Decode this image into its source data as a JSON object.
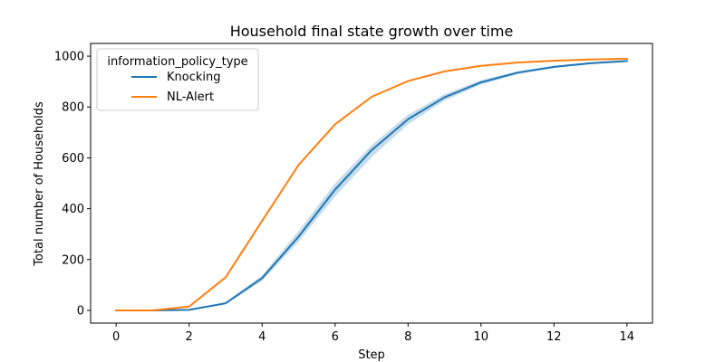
{
  "chart_data": {
    "type": "line",
    "title": "Household final state growth over time",
    "xlabel": "Step",
    "ylabel": "Total number of Households",
    "xlim": [
      -0.7,
      14.7
    ],
    "ylim": [
      -50,
      1050
    ],
    "xticks": [
      0,
      2,
      4,
      6,
      8,
      10,
      12,
      14
    ],
    "yticks": [
      0,
      200,
      400,
      600,
      800,
      1000
    ],
    "grid": false,
    "legend": {
      "title": "information_policy_type",
      "placement": "top-left"
    },
    "x": [
      0,
      1,
      2,
      3,
      4,
      5,
      6,
      7,
      8,
      9,
      10,
      11,
      12,
      13,
      14
    ],
    "series": [
      {
        "name": "Knocking",
        "color": "#1f77b4",
        "values": [
          0,
          0,
          2,
          28,
          127,
          290,
          475,
          630,
          752,
          838,
          897,
          935,
          958,
          972,
          981
        ],
        "ci_lower": [
          0,
          0,
          1,
          24,
          116,
          270,
          448,
          602,
          732,
          825,
          888,
          929,
          953,
          968,
          978
        ],
        "ci_upper": [
          0,
          0,
          3,
          32,
          138,
          312,
          500,
          650,
          770,
          850,
          906,
          941,
          962,
          976,
          984
        ]
      },
      {
        "name": "NL-Alert",
        "color": "#ff7f0e",
        "values": [
          0,
          0,
          15,
          130,
          352,
          572,
          732,
          840,
          902,
          940,
          962,
          975,
          982,
          987,
          990
        ]
      }
    ]
  }
}
